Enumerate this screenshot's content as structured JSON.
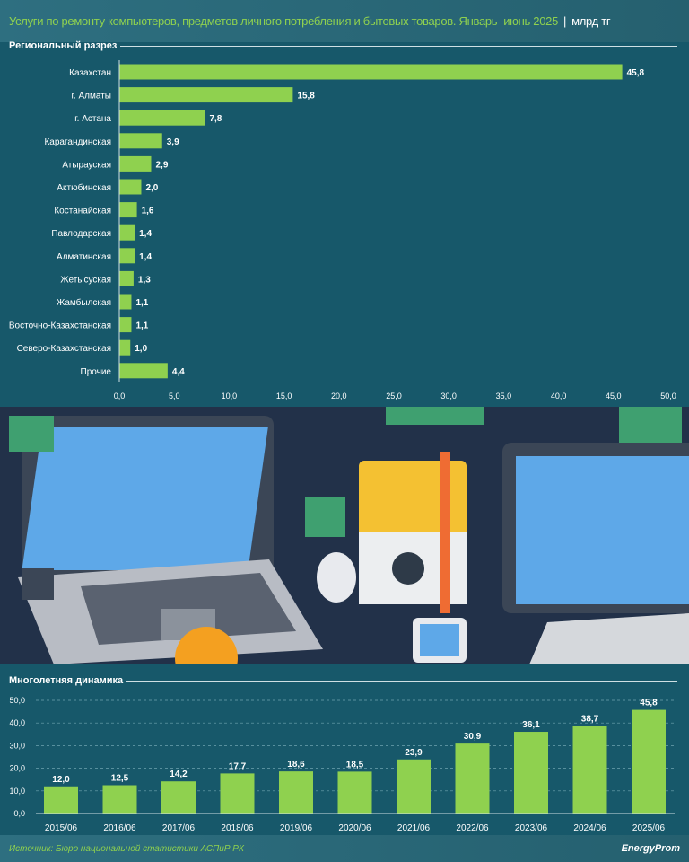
{
  "header": {
    "title": "Услуги по ремонту компьютеров, предметов личного потребления и бытовых товаров. Январь–июнь 2025",
    "unit": "млрд тг"
  },
  "footer": {
    "source": "Источник: Бюро национальной статистики АСПиР РК",
    "logo": "EnergyProm"
  },
  "colors": {
    "bar": "#8fd14f",
    "background": "#17586a",
    "title": "#8fd14f"
  },
  "chart_data": [
    {
      "type": "bar",
      "orientation": "horizontal",
      "title": "Региональный разрез",
      "categories": [
        "Казахстан",
        "г. Алматы",
        "г. Астана",
        "Карагандинская",
        "Атырауская",
        "Актюбинская",
        "Костанайская",
        "Павлодарская",
        "Алматинская",
        "Жетысуская",
        "Жамбылская",
        "Восточно-Казахстанская",
        "Северо-Казахстанская",
        "Прочие"
      ],
      "values": [
        45.8,
        15.8,
        7.8,
        3.9,
        2.9,
        2.0,
        1.6,
        1.4,
        1.4,
        1.3,
        1.1,
        1.1,
        1.0,
        4.4
      ],
      "labels": [
        "45,8",
        "15,8",
        "7,8",
        "3,9",
        "2,9",
        "2,0",
        "1,6",
        "1,4",
        "1,4",
        "1,3",
        "1,1",
        "1,1",
        "1,0",
        "4,4"
      ],
      "xlim": [
        0,
        50
      ],
      "xticks": [
        "0,0",
        "5,0",
        "10,0",
        "15,0",
        "20,0",
        "25,0",
        "30,0",
        "35,0",
        "40,0",
        "45,0",
        "50,0"
      ],
      "grid": false
    },
    {
      "type": "bar",
      "title": "Многолетняя динамика",
      "categories": [
        "2015/06",
        "2016/06",
        "2017/06",
        "2018/06",
        "2019/06",
        "2020/06",
        "2021/06",
        "2022/06",
        "2023/06",
        "2024/06",
        "2025/06"
      ],
      "values": [
        12.0,
        12.5,
        14.2,
        17.7,
        18.6,
        18.5,
        23.9,
        30.9,
        36.1,
        38.7,
        45.8
      ],
      "labels": [
        "12,0",
        "12,5",
        "14,2",
        "17,7",
        "18,6",
        "18,5",
        "23,9",
        "30,9",
        "36,1",
        "38,7",
        "45,8"
      ],
      "ylim": [
        0,
        50
      ],
      "yticks": [
        "0,0",
        "10,0",
        "20,0",
        "30,0",
        "40,0",
        "50,0"
      ],
      "grid": true
    }
  ]
}
